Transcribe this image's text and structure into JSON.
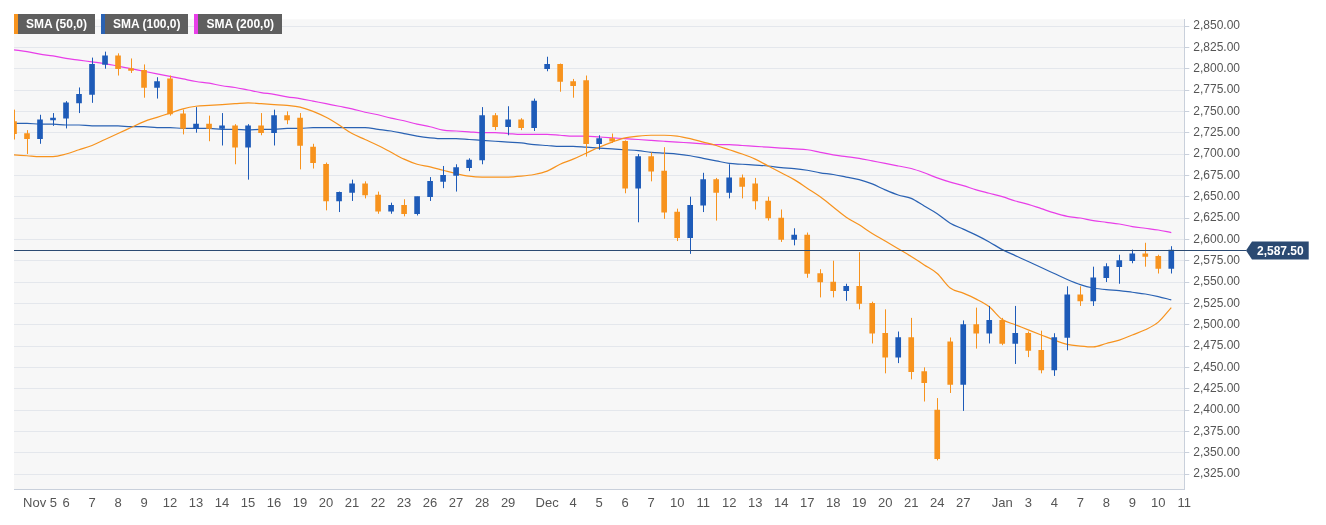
{
  "chart_data": {
    "type": "candlestick",
    "categories": [
      null,
      null,
      "Nov 5",
      null,
      "6",
      null,
      "7",
      null,
      "8",
      null,
      "9",
      null,
      "12",
      null,
      "13",
      null,
      "14",
      null,
      "15",
      null,
      "16",
      null,
      "19",
      null,
      "20",
      null,
      "21",
      null,
      "22",
      null,
      "23",
      null,
      "26",
      null,
      "27",
      null,
      "28",
      null,
      "29",
      null,
      null,
      "Dec",
      null,
      "4",
      null,
      "5",
      null,
      "6",
      null,
      "7",
      null,
      "10",
      null,
      "11",
      null,
      "12",
      null,
      "13",
      null,
      "14",
      null,
      "17",
      null,
      "18",
      null,
      "19",
      null,
      "20",
      null,
      "21",
      null,
      "24",
      null,
      "27",
      null,
      null,
      "Jan",
      null,
      "3",
      null,
      "4",
      null,
      "7",
      null,
      "8",
      null,
      "9",
      null,
      "10",
      null,
      "11"
    ],
    "ohlc": [
      [
        2738,
        2752,
        2717,
        2724
      ],
      [
        2724,
        2728,
        2700,
        2718
      ],
      [
        2718,
        2746,
        2712,
        2740
      ],
      [
        2740,
        2748,
        2733,
        2742
      ],
      [
        2742,
        2762,
        2730,
        2760
      ],
      [
        2760,
        2778,
        2748,
        2770
      ],
      [
        2770,
        2813,
        2760,
        2805
      ],
      [
        2805,
        2820,
        2800,
        2815
      ],
      [
        2815,
        2818,
        2792,
        2800
      ],
      [
        2800,
        2812,
        2795,
        2798
      ],
      [
        2798,
        2805,
        2766,
        2778
      ],
      [
        2778,
        2790,
        2765,
        2785
      ],
      [
        2788,
        2792,
        2745,
        2747
      ],
      [
        2747,
        2752,
        2723,
        2730
      ],
      [
        2730,
        2755,
        2725,
        2735
      ],
      [
        2735,
        2745,
        2715,
        2730
      ],
      [
        2730,
        2748,
        2710,
        2733
      ],
      [
        2733,
        2735,
        2688,
        2708
      ],
      [
        2708,
        2735,
        2670,
        2733
      ],
      [
        2733,
        2748,
        2722,
        2725
      ],
      [
        2725,
        2752,
        2710,
        2745
      ],
      [
        2745,
        2750,
        2735,
        2740
      ],
      [
        2742,
        2748,
        2682,
        2710
      ],
      [
        2708,
        2712,
        2683,
        2690
      ],
      [
        2688,
        2690,
        2634,
        2645
      ],
      [
        2645,
        2656,
        2632,
        2655
      ],
      [
        2655,
        2670,
        2645,
        2665
      ],
      [
        2665,
        2668,
        2648,
        2652
      ],
      [
        2652,
        2656,
        2630,
        2633
      ],
      [
        2633,
        2643,
        2630,
        2640
      ],
      [
        2640,
        2647,
        2627,
        2630
      ],
      [
        2630,
        2650,
        2628,
        2650
      ],
      [
        2650,
        2673,
        2645,
        2668
      ],
      [
        2668,
        2686,
        2660,
        2675
      ],
      [
        2675,
        2688,
        2656,
        2684
      ],
      [
        2684,
        2695,
        2680,
        2693
      ],
      [
        2693,
        2755,
        2688,
        2745
      ],
      [
        2745,
        2748,
        2728,
        2732
      ],
      [
        2732,
        2756,
        2722,
        2740
      ],
      [
        2740,
        2742,
        2728,
        2731
      ],
      [
        2731,
        2765,
        2727,
        2762
      ],
      [
        2800,
        2814,
        2797,
        2805
      ],
      [
        2805,
        2806,
        2773,
        2785
      ],
      [
        2785,
        2788,
        2766,
        2780
      ],
      [
        2786,
        2792,
        2697,
        2712
      ],
      [
        2712,
        2722,
        2705,
        2718
      ],
      [
        2718,
        2724,
        2713,
        2715
      ],
      [
        2715,
        2716,
        2654,
        2660
      ],
      [
        2660,
        2700,
        2620,
        2697
      ],
      [
        2697,
        2702,
        2668,
        2680
      ],
      [
        2680,
        2708,
        2624,
        2632
      ],
      [
        2632,
        2636,
        2598,
        2602
      ],
      [
        2602,
        2650,
        2583,
        2640
      ],
      [
        2640,
        2678,
        2632,
        2670
      ],
      [
        2670,
        2672,
        2622,
        2655
      ],
      [
        2655,
        2688,
        2648,
        2672
      ],
      [
        2672,
        2676,
        2648,
        2662
      ],
      [
        2665,
        2672,
        2635,
        2645
      ],
      [
        2645,
        2650,
        2622,
        2625
      ],
      [
        2625,
        2635,
        2597,
        2600
      ],
      [
        2600,
        2613,
        2593,
        2605
      ],
      [
        2605,
        2608,
        2555,
        2560
      ],
      [
        2560,
        2565,
        2532,
        2550
      ],
      [
        2550,
        2575,
        2532,
        2540
      ],
      [
        2540,
        2548,
        2528,
        2545
      ],
      [
        2545,
        2585,
        2518,
        2525
      ],
      [
        2525,
        2527,
        2478,
        2490
      ],
      [
        2490,
        2518,
        2443,
        2462
      ],
      [
        2462,
        2492,
        2455,
        2485
      ],
      [
        2485,
        2508,
        2436,
        2445
      ],
      [
        2445,
        2450,
        2410,
        2432
      ],
      [
        2400,
        2414,
        2341,
        2343
      ],
      [
        2480,
        2485,
        2420,
        2430
      ],
      [
        2430,
        2505,
        2399,
        2500
      ],
      [
        2500,
        2520,
        2472,
        2490
      ],
      [
        2490,
        2522,
        2478,
        2505
      ],
      [
        2505,
        2508,
        2476,
        2478
      ],
      [
        2478,
        2522,
        2454,
        2490
      ],
      [
        2490,
        2492,
        2462,
        2470
      ],
      [
        2470,
        2493,
        2443,
        2447
      ],
      [
        2447,
        2490,
        2440,
        2485
      ],
      [
        2485,
        2545,
        2470,
        2535
      ],
      [
        2535,
        2545,
        2522,
        2528
      ],
      [
        2528,
        2568,
        2522,
        2555
      ],
      [
        2555,
        2572,
        2550,
        2568
      ],
      [
        2568,
        2582,
        2548,
        2575
      ],
      [
        2575,
        2588,
        2572,
        2583
      ],
      [
        2583,
        2596,
        2568,
        2580
      ],
      [
        2580,
        2582,
        2560,
        2566
      ],
      [
        2566,
        2592,
        2560,
        2587.5
      ],
      null
    ],
    "colors": [
      "#f7931e",
      "#f7931e",
      "#1e5bb8",
      "#1e5bb8",
      "#1e5bb8",
      "#1e5bb8",
      "#1e5bb8",
      "#1e5bb8",
      "#f7931e",
      "#f7931e",
      "#f7931e",
      "#1e5bb8",
      "#f7931e",
      "#f7931e",
      "#1e5bb8",
      "#f7931e",
      "#1e5bb8",
      "#f7931e",
      "#1e5bb8",
      "#f7931e",
      "#1e5bb8",
      "#f7931e",
      "#f7931e",
      "#f7931e",
      "#f7931e",
      "#1e5bb8",
      "#1e5bb8",
      "#f7931e",
      "#f7931e",
      "#1e5bb8",
      "#f7931e",
      "#1e5bb8",
      "#1e5bb8",
      "#1e5bb8",
      "#1e5bb8",
      "#1e5bb8",
      "#1e5bb8",
      "#f7931e",
      "#1e5bb8",
      "#f7931e",
      "#1e5bb8",
      "#1e5bb8",
      "#f7931e",
      "#f7931e",
      "#f7931e",
      "#1e5bb8",
      "#f7931e",
      "#f7931e",
      "#1e5bb8",
      "#f7931e",
      "#f7931e",
      "#f7931e",
      "#1e5bb8",
      "#1e5bb8",
      "#f7931e",
      "#1e5bb8",
      "#f7931e",
      "#f7931e",
      "#f7931e",
      "#f7931e",
      "#1e5bb8",
      "#f7931e",
      "#f7931e",
      "#f7931e",
      "#1e5bb8",
      "#f7931e",
      "#f7931e",
      "#f7931e",
      "#1e5bb8",
      "#f7931e",
      "#f7931e",
      "#f7931e",
      "#f7931e",
      "#1e5bb8",
      "#f7931e",
      "#1e5bb8",
      "#f7931e",
      "#1e5bb8",
      "#f7931e",
      "#f7931e",
      "#1e5bb8",
      "#1e5bb8",
      "#f7931e",
      "#1e5bb8",
      "#1e5bb8",
      "#1e5bb8",
      "#1e5bb8",
      "#f7931e",
      "#f7931e",
      "#1e5bb8",
      null
    ],
    "series": [
      {
        "name": "SMA (50,0)",
        "type": "line",
        "color": "#f7931e",
        "values": [
          2699,
          2698,
          2697,
          2697,
          2700,
          2705,
          2710,
          2717,
          2724,
          2731,
          2738,
          2743,
          2748,
          2753,
          2756,
          2757,
          2758,
          2759,
          2760,
          2759,
          2758,
          2757,
          2755,
          2750,
          2743,
          2734,
          2724,
          2717,
          2710,
          2702,
          2694,
          2688,
          2685,
          2681,
          2677,
          2674,
          2673,
          2673,
          2673,
          2674,
          2676,
          2680,
          2688,
          2694,
          2701,
          2708,
          2714,
          2719,
          2721,
          2722,
          2722,
          2721,
          2718,
          2714,
          2710,
          2705,
          2700,
          2694,
          2686,
          2678,
          2670,
          2660,
          2650,
          2638,
          2626,
          2617,
          2607,
          2598,
          2589,
          2580,
          2570,
          2560,
          2543,
          2537,
          2530,
          2521,
          2506,
          2500,
          2494,
          2488,
          2482,
          2477,
          2475,
          2474,
          2478,
          2482,
          2488,
          2494,
          2503,
          2520,
          null
        ]
      },
      {
        "name": "SMA (100,0)",
        "type": "line",
        "color": "#2a62b3",
        "values": [
          2736,
          2736,
          2735,
          2735,
          2734,
          2734,
          2733,
          2733,
          2733,
          2732,
          2732,
          2731,
          2731,
          2730,
          2730,
          2730,
          2729,
          2729,
          2728,
          2729,
          2729,
          2730,
          2730,
          2731,
          2731,
          2731,
          2731,
          2731,
          2729,
          2727,
          2724,
          2721,
          2719,
          2718,
          2718,
          2717,
          2716,
          2715,
          2714,
          2713,
          2711,
          2710,
          2709,
          2709,
          2708,
          2707,
          2706,
          2705,
          2704,
          2702,
          2701,
          2700,
          2698,
          2695,
          2692,
          2689,
          2688,
          2687,
          2686,
          2684,
          2683,
          2681,
          2678,
          2676,
          2673,
          2670,
          2665,
          2658,
          2652,
          2648,
          2639,
          2630,
          2619,
          2612,
          2605,
          2597,
          2588,
          2581,
          2574,
          2567,
          2560,
          2553,
          2547,
          2543,
          2541,
          2540,
          2538,
          2536,
          2533,
          2529,
          null
        ]
      },
      {
        "name": "SMA (200,0)",
        "type": "line",
        "color": "#e83ee8",
        "values": [
          2822,
          2820,
          2817,
          2815,
          2812,
          2810,
          2808,
          2806,
          2803,
          2800,
          2797,
          2794,
          2791,
          2788,
          2785,
          2783,
          2780,
          2778,
          2775,
          2772,
          2770,
          2767,
          2765,
          2762,
          2759,
          2756,
          2753,
          2749,
          2746,
          2742,
          2739,
          2735,
          2732,
          2728,
          2727,
          2726,
          2725,
          2725,
          2724,
          2723,
          2723,
          2723,
          2722,
          2721,
          2721,
          2720,
          2719,
          2718,
          2717,
          2716,
          2715,
          2714,
          2713,
          2712,
          2711,
          2711,
          2710,
          2709,
          2708,
          2707,
          2706,
          2705,
          2702,
          2699,
          2697,
          2695,
          2692,
          2689,
          2686,
          2683,
          2678,
          2672,
          2667,
          2663,
          2658,
          2654,
          2650,
          2645,
          2641,
          2636,
          2631,
          2627,
          2625,
          2622,
          2620,
          2618,
          2615,
          2613,
          2611,
          2608,
          null
        ]
      }
    ],
    "ylim": [
      2307,
      2858
    ],
    "yticks": [
      {
        "value": 2325,
        "label": "2,325.00"
      },
      {
        "value": 2350,
        "label": "2,350.00"
      },
      {
        "value": 2375,
        "label": "2,375.00"
      },
      {
        "value": 2400,
        "label": "2,400.00"
      },
      {
        "value": 2425,
        "label": "2,425.00"
      },
      {
        "value": 2450,
        "label": "2,450.00"
      },
      {
        "value": 2475,
        "label": "2,475.00"
      },
      {
        "value": 2500,
        "label": "2,500.00"
      },
      {
        "value": 2525,
        "label": "2,525.00"
      },
      {
        "value": 2550,
        "label": "2,550.00"
      },
      {
        "value": 2575,
        "label": "2,575.00"
      },
      {
        "value": 2600,
        "label": "2,600.00"
      },
      {
        "value": 2625,
        "label": "2,625.00"
      },
      {
        "value": 2650,
        "label": "2,650.00"
      },
      {
        "value": 2675,
        "label": "2,675.00"
      },
      {
        "value": 2700,
        "label": "2,700.00"
      },
      {
        "value": 2725,
        "label": "2,725.00"
      },
      {
        "value": 2750,
        "label": "2,750.00"
      },
      {
        "value": 2775,
        "label": "2,775.00"
      },
      {
        "value": 2800,
        "label": "2,800.00"
      },
      {
        "value": 2825,
        "label": "2,825.00"
      },
      {
        "value": 2850,
        "label": "2,850.00"
      }
    ],
    "ref_lines": [
      {
        "axis": "y",
        "value": 2587.5,
        "label": "2,587.50",
        "color": "#2b4a72"
      }
    ],
    "grid": "y",
    "legend": "top left"
  }
}
